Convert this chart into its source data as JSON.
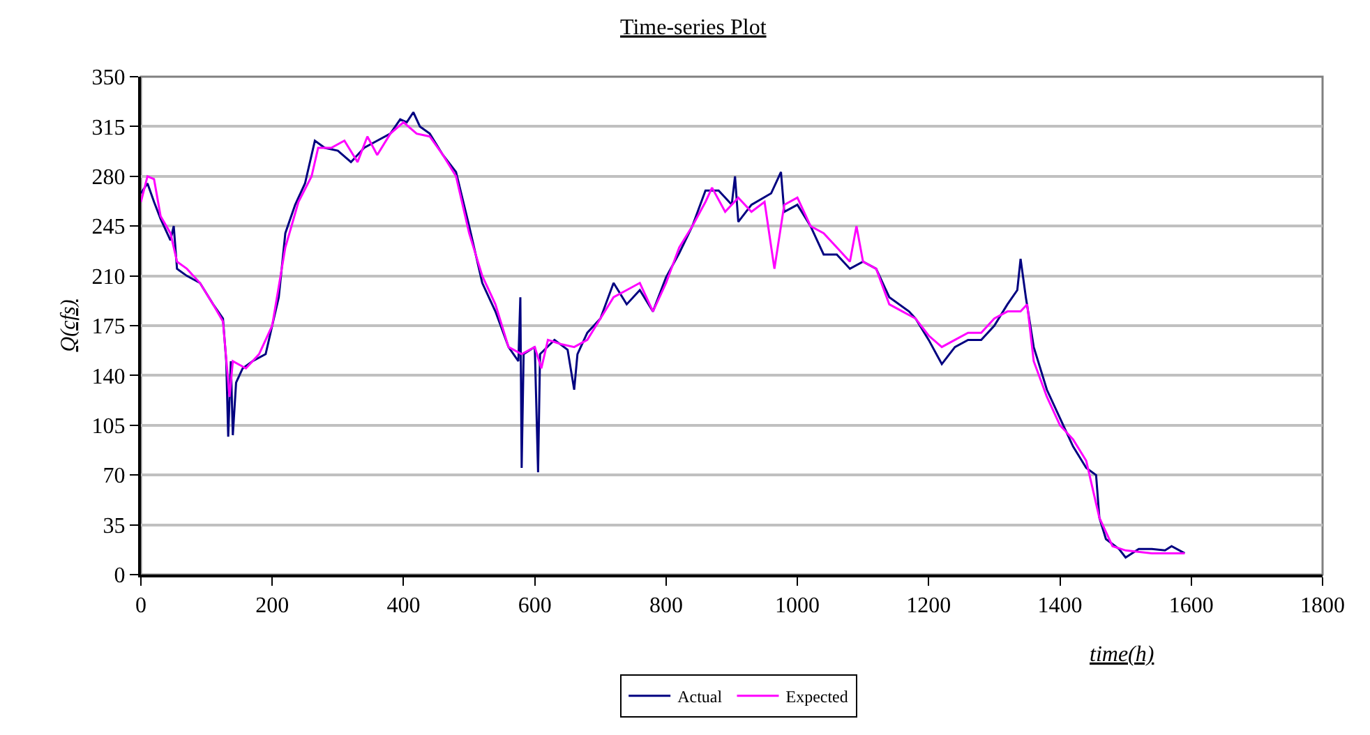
{
  "chart_data": {
    "type": "line",
    "title": "Time-series Plot",
    "xlabel": "time(h)",
    "ylabel": "Q(cfs)",
    "xlim": [
      0,
      1800
    ],
    "xticks": [
      0,
      200,
      400,
      600,
      800,
      1000,
      1200,
      1400,
      1600,
      1800
    ],
    "ylim": [
      0,
      350
    ],
    "yticks": [
      0,
      35,
      70,
      105,
      140,
      175,
      210,
      245,
      280,
      315,
      350
    ],
    "grid": "y",
    "legend": "bottom",
    "marker": "none",
    "line_style": "solid",
    "series": [
      {
        "name": "Actual",
        "color": "#000080",
        "x": [
          0,
          10,
          20,
          30,
          45,
          50,
          55,
          70,
          90,
          110,
          125,
          130,
          133,
          137,
          140,
          145,
          155,
          170,
          190,
          200,
          210,
          220,
          235,
          250,
          265,
          280,
          300,
          320,
          340,
          360,
          380,
          395,
          405,
          415,
          425,
          440,
          460,
          480,
          500,
          520,
          540,
          560,
          575,
          578,
          580,
          583,
          600,
          605,
          608,
          630,
          650,
          660,
          665,
          680,
          700,
          720,
          740,
          760,
          780,
          800,
          820,
          840,
          860,
          880,
          900,
          905,
          910,
          930,
          960,
          975,
          980,
          1000,
          1020,
          1040,
          1060,
          1080,
          1100,
          1120,
          1140,
          1170,
          1180,
          1200,
          1220,
          1240,
          1260,
          1280,
          1300,
          1320,
          1335,
          1340,
          1348,
          1360,
          1380,
          1400,
          1420,
          1440,
          1455,
          1460,
          1470,
          1490,
          1500,
          1520,
          1540,
          1560,
          1570,
          1590
        ],
        "values": [
          268,
          275,
          262,
          250,
          235,
          245,
          215,
          210,
          205,
          190,
          180,
          150,
          97,
          150,
          98,
          135,
          145,
          150,
          155,
          175,
          195,
          240,
          260,
          275,
          305,
          300,
          298,
          290,
          300,
          305,
          310,
          320,
          318,
          325,
          315,
          310,
          295,
          283,
          245,
          205,
          185,
          160,
          150,
          195,
          75,
          155,
          160,
          72,
          155,
          165,
          158,
          130,
          155,
          170,
          180,
          205,
          190,
          200,
          185,
          209,
          226,
          245,
          270,
          270,
          260,
          280,
          248,
          260,
          268,
          283,
          255,
          260,
          245,
          225,
          225,
          215,
          220,
          215,
          195,
          185,
          180,
          165,
          148,
          160,
          165,
          165,
          175,
          190,
          200,
          222,
          195,
          160,
          130,
          110,
          90,
          75,
          70,
          40,
          25,
          18,
          12,
          18,
          18,
          17,
          20,
          15
        ]
      },
      {
        "name": "Expected",
        "color": "#ff00ff",
        "x": [
          0,
          10,
          20,
          30,
          45,
          55,
          70,
          90,
          110,
          125,
          135,
          140,
          160,
          180,
          200,
          220,
          240,
          260,
          270,
          290,
          310,
          330,
          345,
          360,
          380,
          400,
          420,
          440,
          460,
          480,
          500,
          520,
          540,
          560,
          580,
          600,
          610,
          620,
          640,
          660,
          680,
          700,
          720,
          740,
          760,
          780,
          800,
          820,
          840,
          860,
          870,
          890,
          910,
          930,
          950,
          965,
          980,
          1000,
          1020,
          1040,
          1060,
          1080,
          1090,
          1100,
          1120,
          1140,
          1160,
          1180,
          1200,
          1220,
          1240,
          1260,
          1280,
          1300,
          1320,
          1340,
          1350,
          1360,
          1380,
          1400,
          1420,
          1440,
          1460,
          1480,
          1500,
          1540,
          1590
        ],
        "values": [
          262,
          280,
          278,
          252,
          240,
          220,
          215,
          205,
          190,
          178,
          125,
          150,
          145,
          155,
          175,
          230,
          262,
          280,
          300,
          300,
          305,
          290,
          308,
          295,
          310,
          318,
          310,
          308,
          295,
          280,
          240,
          210,
          190,
          160,
          155,
          160,
          145,
          165,
          162,
          160,
          165,
          180,
          195,
          200,
          205,
          185,
          205,
          230,
          245,
          262,
          272,
          255,
          265,
          255,
          262,
          215,
          260,
          265,
          245,
          240,
          230,
          220,
          245,
          220,
          215,
          190,
          185,
          180,
          168,
          160,
          165,
          170,
          170,
          180,
          185,
          185,
          190,
          150,
          125,
          105,
          95,
          80,
          40,
          20,
          17,
          15,
          15
        ]
      }
    ]
  }
}
